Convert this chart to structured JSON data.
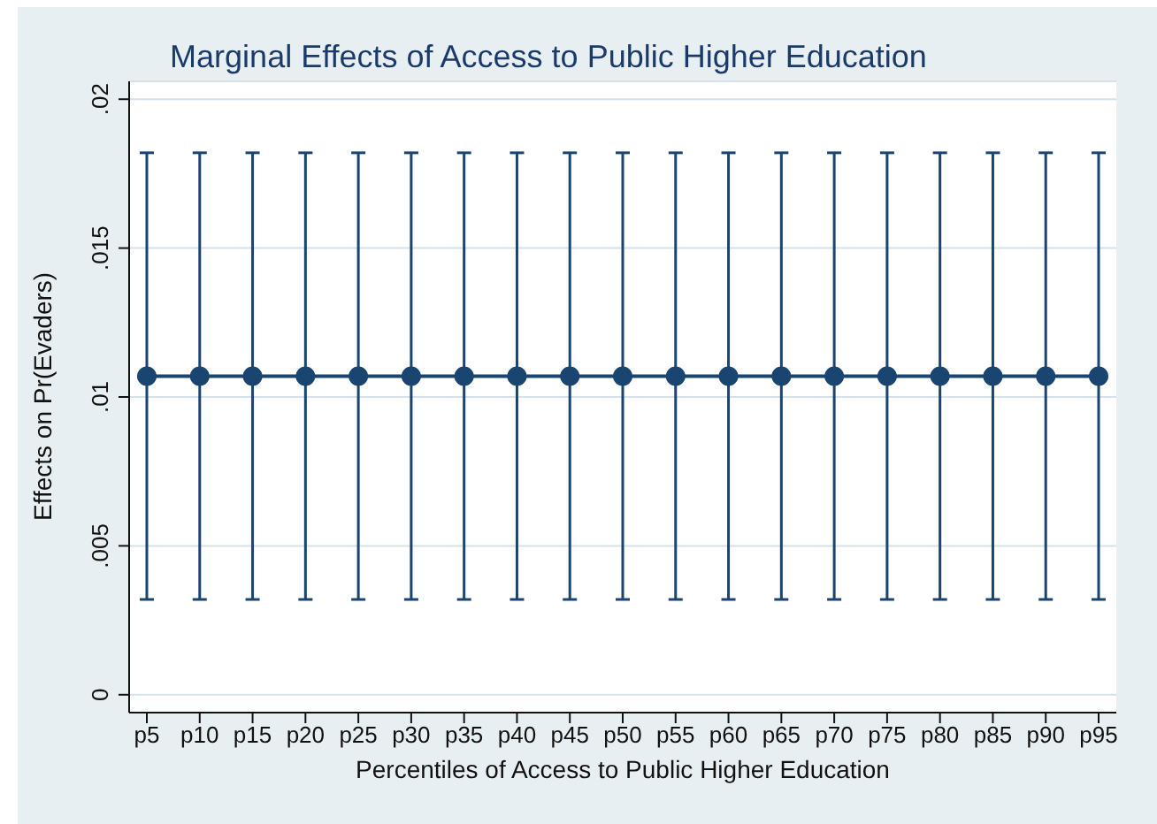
{
  "chart_data": {
    "type": "line",
    "title": "Marginal Effects of Access to Public Higher Education",
    "xlabel": "Percentiles of Access to Public Higher Education",
    "ylabel": "Effects on Pr(Evaders)",
    "categories": [
      "p5",
      "p10",
      "p15",
      "p20",
      "p25",
      "p30",
      "p35",
      "p40",
      "p45",
      "p50",
      "p55",
      "p60",
      "p65",
      "p70",
      "p75",
      "p80",
      "p85",
      "p90",
      "p95"
    ],
    "series": [
      {
        "color": "#1a4570",
        "values": [
          0.0107,
          0.0107,
          0.0107,
          0.0107,
          0.0107,
          0.0107,
          0.0107,
          0.0107,
          0.0107,
          0.0107,
          0.0107,
          0.0107,
          0.0107,
          0.0107,
          0.0107,
          0.0107,
          0.0107,
          0.0107,
          0.0107
        ],
        "errors": [
          [
            0.0032,
            0.0182
          ],
          [
            0.0032,
            0.0182
          ],
          [
            0.0032,
            0.0182
          ],
          [
            0.0032,
            0.0182
          ],
          [
            0.0032,
            0.0182
          ],
          [
            0.0032,
            0.0182
          ],
          [
            0.0032,
            0.0182
          ],
          [
            0.0032,
            0.0182
          ],
          [
            0.0032,
            0.0182
          ],
          [
            0.0032,
            0.0182
          ],
          [
            0.0032,
            0.0182
          ],
          [
            0.0032,
            0.0182
          ],
          [
            0.0032,
            0.0182
          ],
          [
            0.0032,
            0.0182
          ],
          [
            0.0032,
            0.0182
          ],
          [
            0.0032,
            0.0182
          ],
          [
            0.0032,
            0.0182
          ],
          [
            0.0032,
            0.0182
          ],
          [
            0.0032,
            0.0182
          ]
        ]
      }
    ],
    "ylim": [
      -0.0006,
      0.0206
    ],
    "yticks": [
      {
        "value": 0,
        "label": "0"
      },
      {
        "value": 0.005,
        "label": ".005"
      },
      {
        "value": 0.01,
        "label": ".01"
      },
      {
        "value": 0.015,
        "label": ".015"
      },
      {
        "value": 0.02,
        "label": ".02"
      }
    ],
    "grid": "y",
    "marker": "circle",
    "line_style": "solid",
    "legend": false
  }
}
